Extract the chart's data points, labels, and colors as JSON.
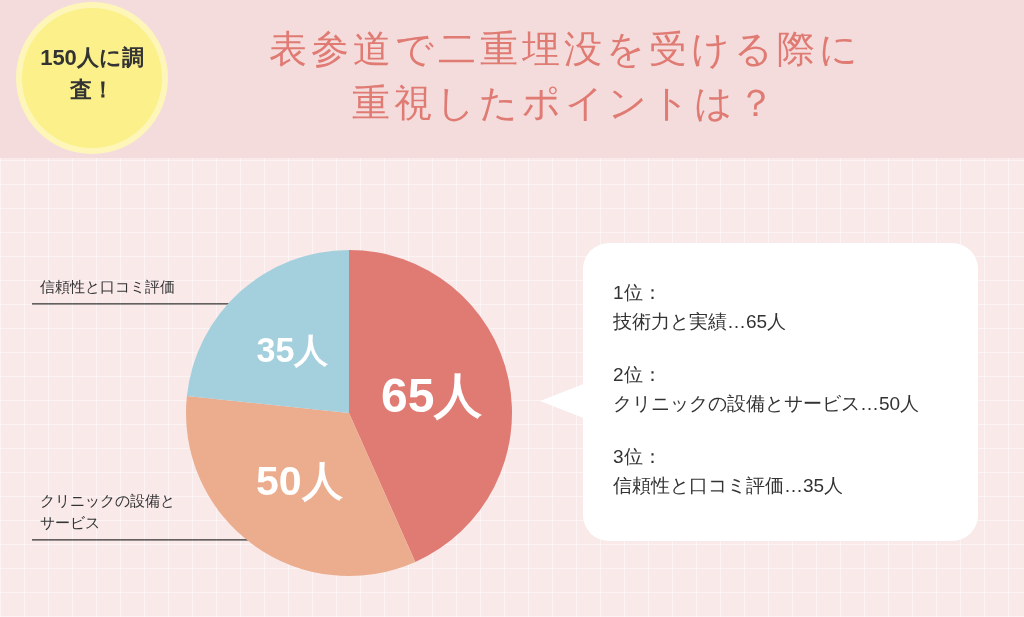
{
  "chart_data": {
    "type": "pie",
    "title": "表参道で二重埋没を受ける際に重視したポイントは？",
    "subtitle": "150人に調査！",
    "categories": [
      null,
      "クリニックの設備とサービス",
      "信頼性と口コミ評価"
    ],
    "values": [
      65,
      50,
      35
    ],
    "colors": [
      "#e07b74",
      "#ebad8e",
      "#a4cfdd"
    ],
    "value_labels": [
      "65人",
      "50人",
      "35人"
    ],
    "annotations": [
      "1位：",
      "技術力と実績…65人",
      "2位：",
      "クリニックの設備とサービス…50人",
      "3位：",
      "信頼性と口コミ評価…35人"
    ],
    "legend": false
  }
}
